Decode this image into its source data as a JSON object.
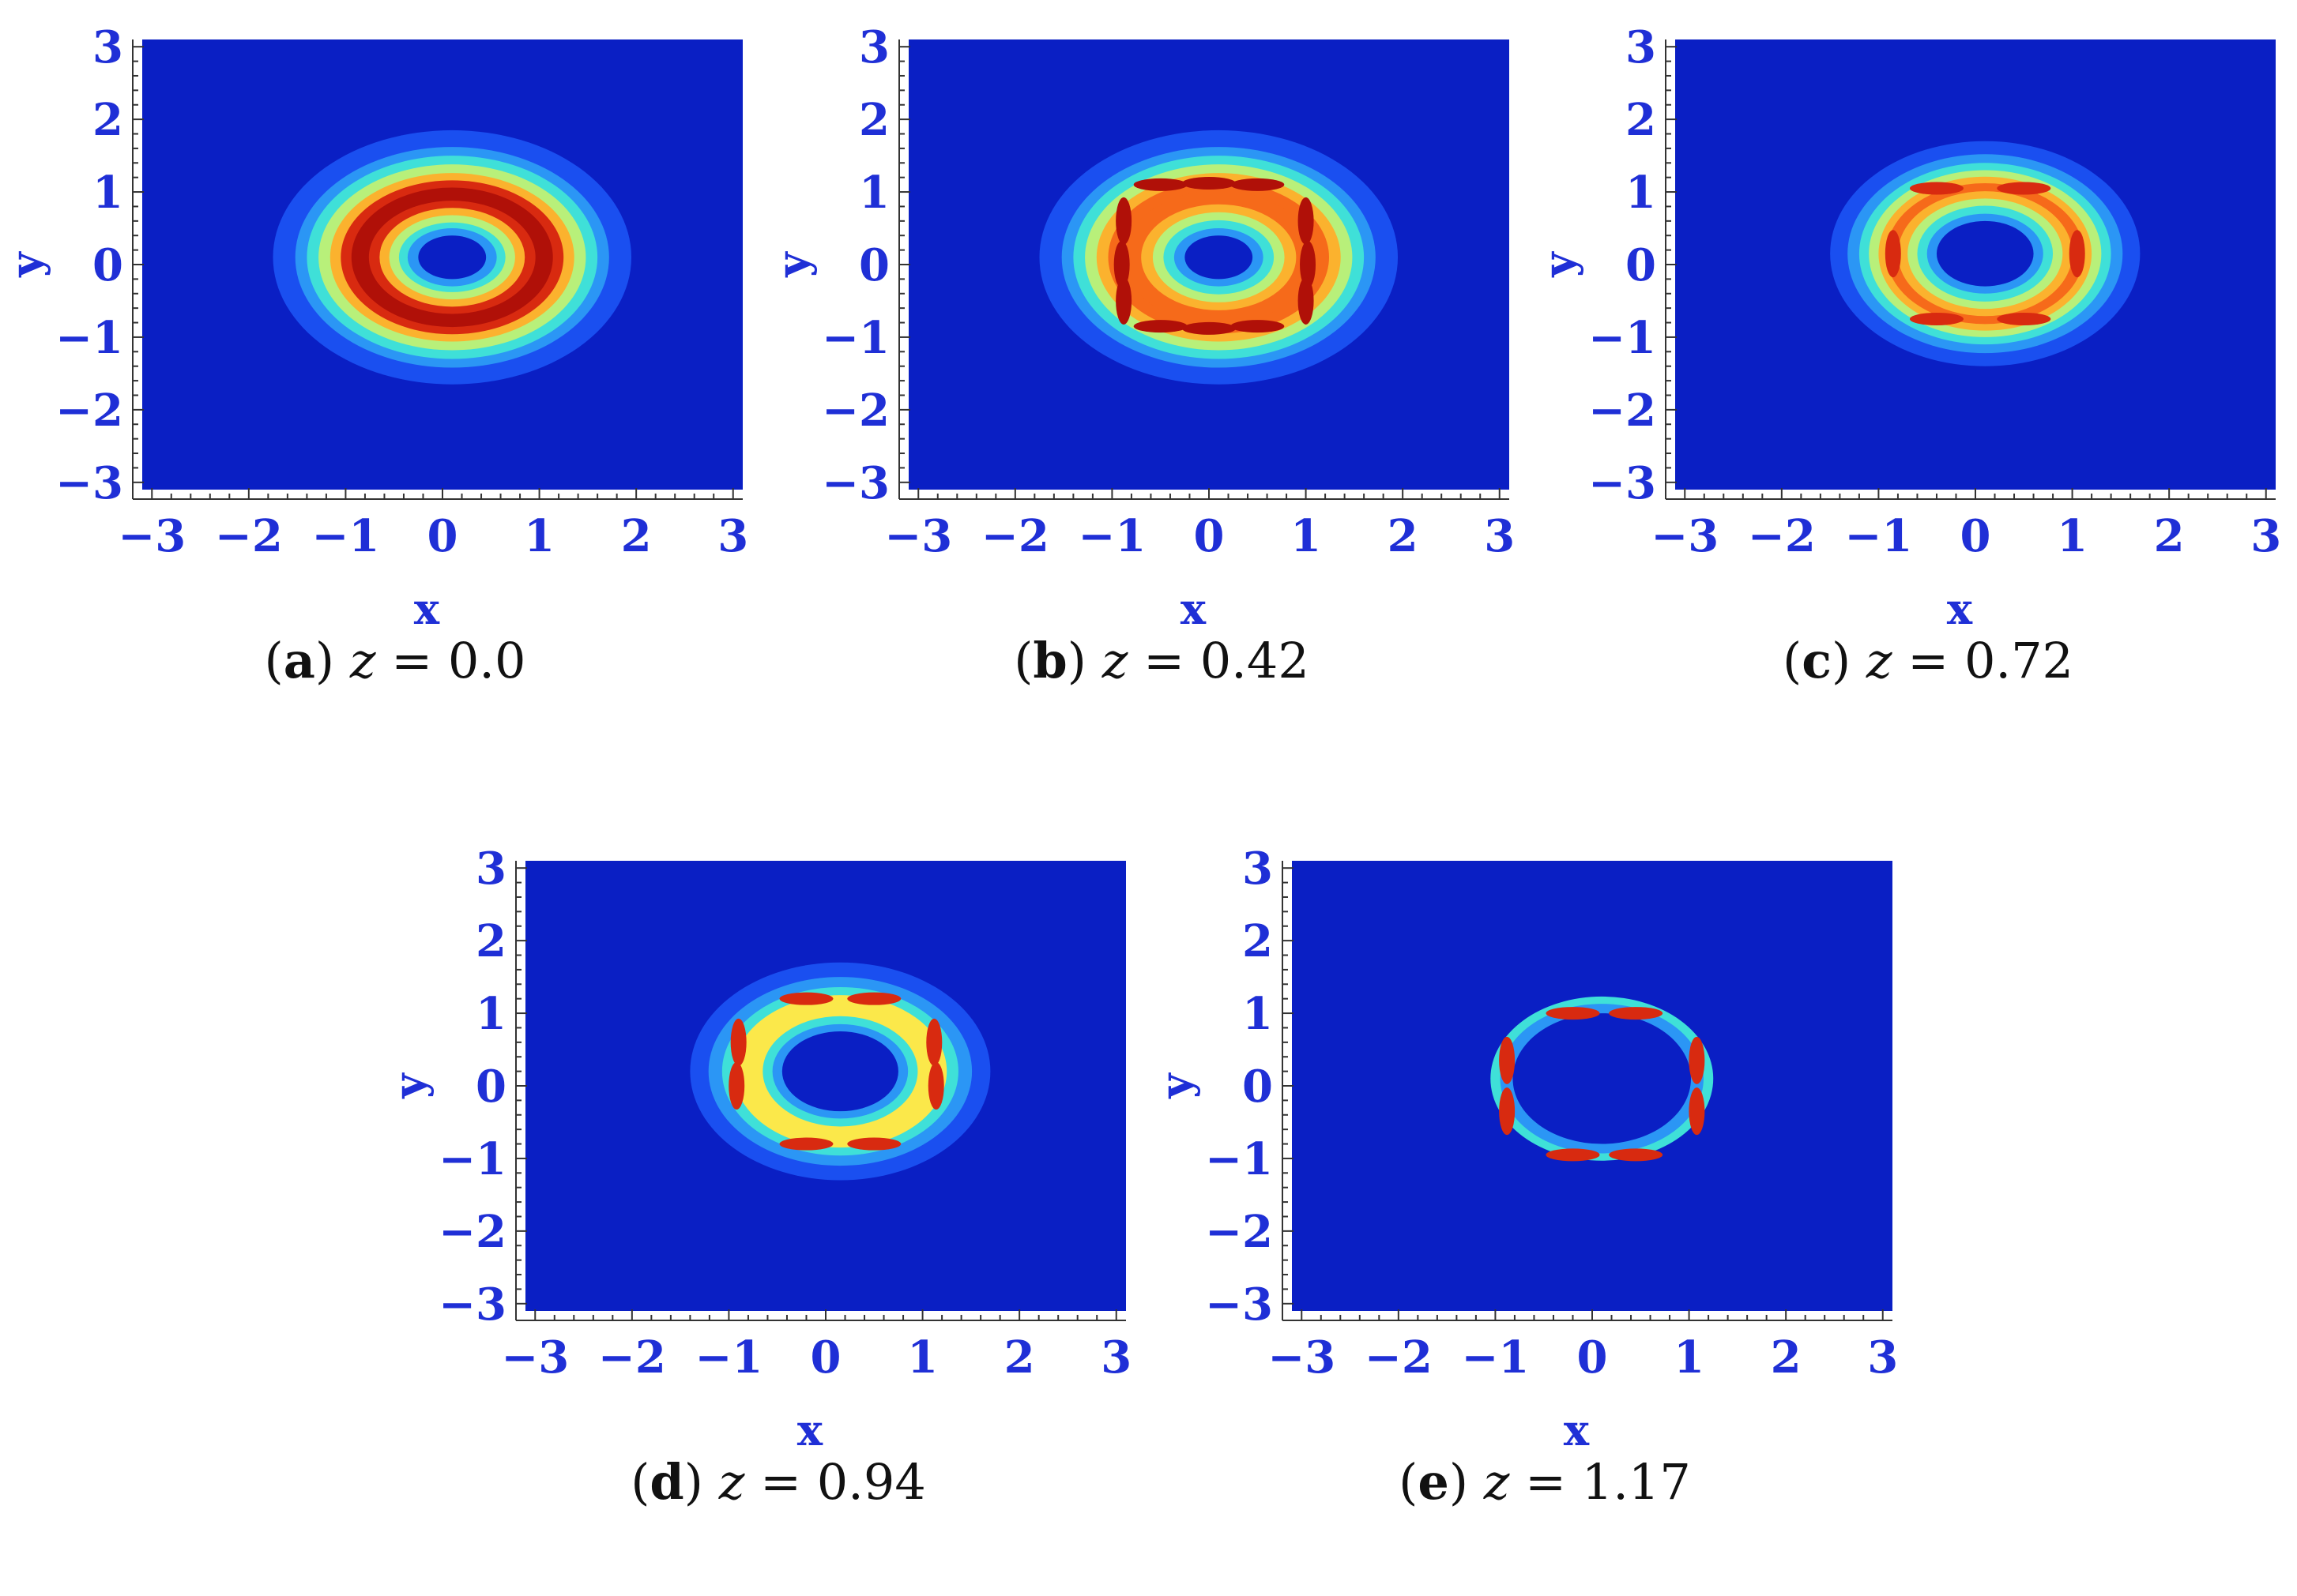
{
  "colors": {
    "background_field": "#0a1fc4",
    "levels": [
      "#0a1fc4",
      "#1a4ff0",
      "#2b96f5",
      "#3fe0d8",
      "#b8f07a",
      "#fbe84a",
      "#fbb22e",
      "#f66a1a",
      "#d82a10",
      "#b01008"
    ],
    "axis": "#1f2fd6"
  },
  "chart_data": [
    {
      "type": "heatmap",
      "caption_letter": "a",
      "caption_z": "0.0",
      "xlabel": "x",
      "ylabel": "y",
      "xlim": [
        -3.1,
        3.1
      ],
      "ylim": [
        -3.1,
        3.1
      ],
      "xticks": [
        "−3",
        "−2",
        "−1",
        "0",
        "1",
        "2",
        "3"
      ],
      "yticks": [
        "3",
        "2",
        "1",
        "0",
        "−1",
        "−2",
        "−3"
      ],
      "ring": {
        "center": [
          0.1,
          0.1
        ],
        "outer_rx": 1.85,
        "outer_ry": 1.75,
        "inner_rx": 0.35,
        "inner_ry": 0.3
      },
      "levels": [
        {
          "rx": 1.85,
          "ry": 1.75,
          "level": 1
        },
        {
          "rx": 1.62,
          "ry": 1.52,
          "level": 2
        },
        {
          "rx": 1.5,
          "ry": 1.4,
          "level": 3
        },
        {
          "rx": 1.38,
          "ry": 1.28,
          "level": 4
        },
        {
          "rx": 1.26,
          "ry": 1.16,
          "level": 6
        },
        {
          "rx": 1.15,
          "ry": 1.06,
          "level": 8
        },
        {
          "rx": 1.04,
          "ry": 0.96,
          "level": 9
        },
        {
          "rx": 0.86,
          "ry": 0.78,
          "level": 8
        },
        {
          "rx": 0.75,
          "ry": 0.68,
          "level": 6
        },
        {
          "rx": 0.65,
          "ry": 0.58,
          "level": 4
        },
        {
          "rx": 0.55,
          "ry": 0.48,
          "level": 3
        },
        {
          "rx": 0.46,
          "ry": 0.4,
          "level": 2
        },
        {
          "rx": 0.35,
          "ry": 0.3,
          "level": 0
        }
      ],
      "peaks": []
    },
    {
      "type": "heatmap",
      "caption_letter": "b",
      "caption_z": "0.42",
      "xlabel": "x",
      "ylabel": "y",
      "xlim": [
        -3.1,
        3.1
      ],
      "ylim": [
        -3.1,
        3.1
      ],
      "xticks": [
        "−3",
        "−2",
        "−1",
        "0",
        "1",
        "2",
        "3"
      ],
      "yticks": [
        "3",
        "2",
        "1",
        "0",
        "−1",
        "−2",
        "−3"
      ],
      "ring": {
        "center": [
          0.1,
          0.1
        ],
        "outer_rx": 1.85,
        "outer_ry": 1.75,
        "inner_rx": 0.35,
        "inner_ry": 0.3
      },
      "levels": [
        {
          "rx": 1.85,
          "ry": 1.75,
          "level": 1
        },
        {
          "rx": 1.62,
          "ry": 1.52,
          "level": 2
        },
        {
          "rx": 1.5,
          "ry": 1.4,
          "level": 3
        },
        {
          "rx": 1.38,
          "ry": 1.28,
          "level": 4
        },
        {
          "rx": 1.26,
          "ry": 1.16,
          "level": 6
        },
        {
          "rx": 1.14,
          "ry": 1.05,
          "level": 7
        },
        {
          "rx": 0.98,
          "ry": 0.92,
          "level": 7
        },
        {
          "rx": 0.8,
          "ry": 0.73,
          "level": 6
        },
        {
          "rx": 0.68,
          "ry": 0.62,
          "level": 4
        },
        {
          "rx": 0.57,
          "ry": 0.51,
          "level": 3
        },
        {
          "rx": 0.46,
          "ry": 0.4,
          "level": 2
        },
        {
          "rx": 0.35,
          "ry": 0.3,
          "level": 0
        }
      ],
      "peaks": [
        {
          "x": -0.5,
          "y": 1.1,
          "level": 9
        },
        {
          "x": 0.0,
          "y": 1.12,
          "level": 9
        },
        {
          "x": 0.5,
          "y": 1.1,
          "level": 9
        },
        {
          "x": -0.5,
          "y": -0.85,
          "level": 9
        },
        {
          "x": 0.0,
          "y": -0.88,
          "level": 9
        },
        {
          "x": 0.5,
          "y": -0.85,
          "level": 9
        },
        {
          "x": -0.88,
          "y": 0.6,
          "level": 9
        },
        {
          "x": -0.9,
          "y": 0.0,
          "level": 9
        },
        {
          "x": -0.88,
          "y": -0.5,
          "level": 9
        },
        {
          "x": 1.0,
          "y": 0.6,
          "level": 9
        },
        {
          "x": 1.02,
          "y": 0.0,
          "level": 9
        },
        {
          "x": 1.0,
          "y": -0.5,
          "level": 9
        }
      ]
    },
    {
      "type": "heatmap",
      "caption_letter": "c",
      "caption_z": "0.72",
      "xlabel": "x",
      "ylabel": "y",
      "xlim": [
        -3.1,
        3.1
      ],
      "ylim": [
        -3.1,
        3.1
      ],
      "xticks": [
        "−3",
        "−2",
        "−1",
        "0",
        "1",
        "2",
        "3"
      ],
      "yticks": [
        "3",
        "2",
        "1",
        "0",
        "−1",
        "−2",
        "−3"
      ],
      "ring": {
        "center": [
          0.1,
          0.15
        ],
        "outer_rx": 1.6,
        "outer_ry": 1.55,
        "inner_rx": 0.5,
        "inner_ry": 0.45
      },
      "levels": [
        {
          "rx": 1.6,
          "ry": 1.55,
          "level": 1
        },
        {
          "rx": 1.42,
          "ry": 1.37,
          "level": 2
        },
        {
          "rx": 1.3,
          "ry": 1.25,
          "level": 3
        },
        {
          "rx": 1.2,
          "ry": 1.15,
          "level": 4
        },
        {
          "rx": 1.1,
          "ry": 1.06,
          "level": 6
        },
        {
          "rx": 1.02,
          "ry": 0.97,
          "level": 7
        },
        {
          "rx": 0.9,
          "ry": 0.86,
          "level": 6
        },
        {
          "rx": 0.8,
          "ry": 0.76,
          "level": 4
        },
        {
          "rx": 0.7,
          "ry": 0.66,
          "level": 3
        },
        {
          "rx": 0.6,
          "ry": 0.55,
          "level": 2
        },
        {
          "rx": 0.5,
          "ry": 0.45,
          "level": 0
        }
      ],
      "peaks": [
        {
          "x": -0.4,
          "y": 1.05,
          "level": 8
        },
        {
          "x": 0.5,
          "y": 1.05,
          "level": 8
        },
        {
          "x": -0.4,
          "y": -0.75,
          "level": 8
        },
        {
          "x": 0.5,
          "y": -0.75,
          "level": 8
        },
        {
          "x": -0.85,
          "y": 0.15,
          "level": 8
        },
        {
          "x": 1.05,
          "y": 0.15,
          "level": 8
        }
      ]
    },
    {
      "type": "heatmap",
      "caption_letter": "d",
      "caption_z": "0.94",
      "xlabel": "x",
      "ylabel": "y",
      "xlim": [
        -3.1,
        3.1
      ],
      "ylim": [
        -3.1,
        3.1
      ],
      "xticks": [
        "−3",
        "−2",
        "−1",
        "0",
        "1",
        "2",
        "3"
      ],
      "yticks": [
        "3",
        "2",
        "1",
        "0",
        "−1",
        "−2",
        "−3"
      ],
      "ring": {
        "center": [
          0.15,
          0.2
        ],
        "outer_rx": 1.55,
        "outer_ry": 1.5,
        "inner_rx": 0.6,
        "inner_ry": 0.55
      },
      "levels": [
        {
          "rx": 1.55,
          "ry": 1.5,
          "level": 1
        },
        {
          "rx": 1.36,
          "ry": 1.3,
          "level": 2
        },
        {
          "rx": 1.22,
          "ry": 1.16,
          "level": 3
        },
        {
          "rx": 1.1,
          "ry": 1.05,
          "level": 5
        },
        {
          "rx": 0.8,
          "ry": 0.76,
          "level": 3
        },
        {
          "rx": 0.7,
          "ry": 0.65,
          "level": 2
        },
        {
          "rx": 0.6,
          "ry": 0.55,
          "level": 0
        }
      ],
      "peaks": [
        {
          "x": -0.2,
          "y": 1.2,
          "level": 8
        },
        {
          "x": 0.5,
          "y": 1.2,
          "level": 8
        },
        {
          "x": -0.2,
          "y": -0.8,
          "level": 8
        },
        {
          "x": 0.5,
          "y": -0.8,
          "level": 8
        },
        {
          "x": -0.9,
          "y": 0.6,
          "level": 8
        },
        {
          "x": -0.92,
          "y": 0.0,
          "level": 8
        },
        {
          "x": 1.12,
          "y": 0.6,
          "level": 8
        },
        {
          "x": 1.14,
          "y": 0.0,
          "level": 8
        }
      ]
    },
    {
      "type": "heatmap",
      "caption_letter": "e",
      "caption_z": "1.17",
      "xlabel": "x",
      "ylabel": "y",
      "xlim": [
        -3.1,
        3.1
      ],
      "ylim": [
        -3.1,
        3.1
      ],
      "xticks": [
        "−3",
        "−2",
        "−1",
        "0",
        "1",
        "2",
        "3"
      ],
      "yticks": [
        "3",
        "2",
        "1",
        "0",
        "−1",
        "−2",
        "−3"
      ],
      "ring": {
        "center": [
          0.1,
          0.1
        ],
        "outer_rx": 1.1,
        "outer_ry": 1.08,
        "inner_rx": 0.9,
        "inner_ry": 0.88
      },
      "levels": [
        {
          "rx": 1.15,
          "ry": 1.13,
          "level": 3
        },
        {
          "rx": 1.05,
          "ry": 1.03,
          "level": 2
        },
        {
          "rx": 0.92,
          "ry": 0.9,
          "level": 0
        }
      ],
      "peaks": [
        {
          "x": -0.2,
          "y": 1.0,
          "level": 8
        },
        {
          "x": 0.45,
          "y": 1.0,
          "level": 8
        },
        {
          "x": -0.2,
          "y": -0.95,
          "level": 8
        },
        {
          "x": 0.45,
          "y": -0.95,
          "level": 8
        },
        {
          "x": -0.88,
          "y": 0.35,
          "level": 8
        },
        {
          "x": -0.88,
          "y": -0.35,
          "level": 8
        },
        {
          "x": 1.08,
          "y": 0.35,
          "level": 8
        },
        {
          "x": 1.08,
          "y": -0.35,
          "level": 8
        }
      ]
    }
  ]
}
